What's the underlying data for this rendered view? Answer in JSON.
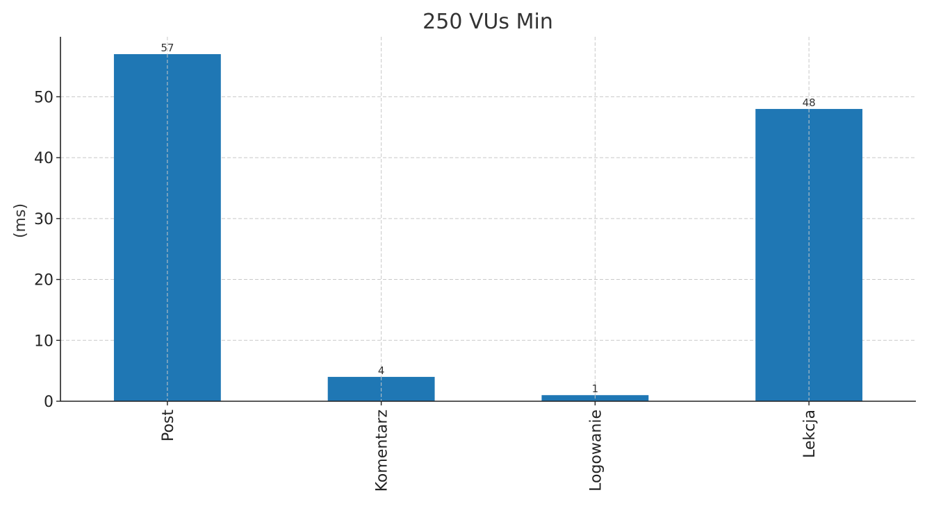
{
  "chart_data": {
    "type": "bar",
    "title": "250 VUs Min",
    "xlabel": "",
    "ylabel": "(ms)",
    "categories": [
      "Post",
      "Komentarz",
      "Logowanie",
      "Lekcja"
    ],
    "values": [
      57,
      4,
      1,
      48
    ],
    "ylim": [
      0,
      59.85
    ],
    "yticks": [
      0,
      10,
      20,
      30,
      40,
      50
    ],
    "grid": true,
    "bar_color": "#1f77b4",
    "x_tick_rotation": "vertical"
  }
}
